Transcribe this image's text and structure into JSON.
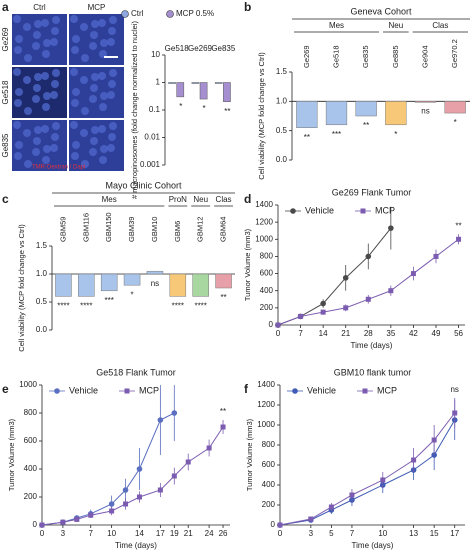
{
  "micrographs": {
    "columns": [
      "Ctrl",
      "MCP"
    ],
    "rows": [
      "Ge269",
      "Ge518",
      "Ge835"
    ],
    "stain": "TMR-Dextran / Dapi"
  },
  "chart_data": [
    {
      "type": "bar",
      "panel": "a",
      "ylabel": "# macropinosomes (fold change normalized to nuclei)",
      "categories": [
        "Ge518",
        "Ge269",
        "Ge835"
      ],
      "series": [
        {
          "name": "Ctrl",
          "color": "#8fa8e0",
          "values": [
            1,
            1,
            1
          ]
        },
        {
          "name": "MCP 0.5%",
          "color": "#a58fd0",
          "values": [
            0.3,
            0.25,
            0.2
          ]
        }
      ],
      "annotations": [
        "*",
        "*",
        "**"
      ],
      "log": true,
      "baseline": 1,
      "ylim": [
        0.001,
        10
      ],
      "yticks": [
        10,
        1,
        0.1,
        0.01,
        0.001
      ]
    },
    {
      "type": "groupbar",
      "panel": "b",
      "title": "Geneva Cohort",
      "ylabel": "Cell viability (MCP fold change vs Ctrl)",
      "baseline": 1,
      "groups": [
        {
          "name": "Mes",
          "color": "#a9c4ea",
          "categories": [
            "Ge269",
            "Ge518",
            "Ge835"
          ],
          "values": [
            0.55,
            0.6,
            0.75
          ],
          "annotations": [
            "**",
            "***",
            "**"
          ]
        },
        {
          "name": "Neu",
          "color": "#f6c877",
          "categories": [
            "Ge885"
          ],
          "values": [
            0.6
          ],
          "annotations": [
            "*"
          ]
        },
        {
          "name": "Clas",
          "color": "#e8a0a8",
          "categories": [
            "Ge904",
            "Ge970.2"
          ],
          "values": [
            1.0,
            0.8
          ],
          "annotations": [
            "ns",
            "*"
          ]
        }
      ],
      "ylim": [
        0,
        1.5
      ],
      "yticks": [
        1.5,
        {
          "value": 1,
          "label": "1.0"
        },
        0.5,
        {
          "value": 0,
          "label": "0.0"
        }
      ]
    },
    {
      "type": "groupbar",
      "panel": "c",
      "title": "Mayo Clinic Cohort",
      "ylabel": "Cell viability (MCP fold change vs Ctrl)",
      "baseline": 1,
      "groups": [
        {
          "name": "Mes",
          "color": "#a9c4ea",
          "categories": [
            "GBM59",
            "GBM116",
            "GBM150",
            "GBM39",
            "GBM10"
          ],
          "values": [
            0.6,
            0.6,
            0.7,
            0.8,
            1.05
          ],
          "annotations": [
            "****",
            "****",
            "***",
            "*",
            "ns"
          ]
        },
        {
          "name": "ProN",
          "color": "#f6c877",
          "categories": [
            "GBM6"
          ],
          "values": [
            0.6
          ],
          "annotations": [
            "****"
          ]
        },
        {
          "name": "Neu",
          "color": "#a8d8a0",
          "categories": [
            "GBM12"
          ],
          "values": [
            0.6
          ],
          "annotations": [
            "****"
          ]
        },
        {
          "name": "Clas",
          "color": "#e8a0a8",
          "categories": [
            "GBM64"
          ],
          "values": [
            0.75
          ],
          "annotations": [
            "**"
          ]
        }
      ],
      "ylim": [
        0,
        1.5
      ],
      "yticks": [
        1.5,
        {
          "value": 1,
          "label": "1.0"
        },
        0.5,
        {
          "value": 0,
          "label": "0.0"
        }
      ]
    },
    {
      "type": "line",
      "panel": "d",
      "title": "Ge269 Flank Tumor",
      "xlabel": "Time (days)",
      "ylabel": "Tumor Volume (mm3)",
      "annotation": "**",
      "series": [
        {
          "name": "Vehicle",
          "color": "#4a4a4a",
          "marker": "circle",
          "x": [
            0,
            7,
            14,
            21,
            28,
            35
          ],
          "values": [
            0,
            100,
            250,
            550,
            800,
            1130
          ],
          "errors": [
            0,
            20,
            50,
            150,
            150,
            250
          ]
        },
        {
          "name": "MCP",
          "color": "#7b5cb0",
          "marker": "square",
          "x": [
            0,
            7,
            14,
            21,
            28,
            35,
            42,
            49,
            56
          ],
          "values": [
            0,
            100,
            150,
            200,
            300,
            400,
            600,
            800,
            1000
          ],
          "errors": [
            0,
            20,
            30,
            40,
            50,
            60,
            80,
            80,
            60
          ]
        }
      ],
      "xlim": [
        0,
        58
      ],
      "xticks": [
        0,
        7,
        14,
        21,
        28,
        35,
        42,
        49,
        56
      ],
      "ylim": [
        0,
        1400
      ],
      "yticks": [
        0,
        200,
        400,
        600,
        800,
        1000,
        1200,
        1400
      ]
    },
    {
      "type": "line",
      "panel": "e",
      "title": "Ge518 Flank Tumor",
      "xlabel": "Time (days)",
      "ylabel": "Tumor Volume (mm3)",
      "annotation": "**",
      "series": [
        {
          "name": "Vehicle",
          "color": "#5a6fc0",
          "marker": "circle",
          "x": [
            0,
            3,
            5,
            7,
            10,
            12,
            14,
            17,
            19
          ],
          "values": [
            0,
            20,
            50,
            80,
            150,
            250,
            400,
            750,
            800
          ],
          "errors": [
            0,
            10,
            20,
            30,
            60,
            80,
            150,
            250,
            200
          ]
        },
        {
          "name": "MCP",
          "color": "#7b5cb0",
          "marker": "square",
          "x": [
            0,
            3,
            5,
            7,
            10,
            12,
            14,
            17,
            19,
            21,
            24,
            26
          ],
          "values": [
            0,
            20,
            40,
            70,
            100,
            150,
            200,
            250,
            350,
            450,
            550,
            700
          ],
          "errors": [
            0,
            10,
            15,
            20,
            30,
            40,
            40,
            50,
            60,
            60,
            60,
            50
          ]
        }
      ],
      "xlim": [
        0,
        27
      ],
      "xticks": [
        0,
        3,
        7,
        10,
        14,
        17,
        19,
        21,
        24,
        26
      ],
      "ylim": [
        0,
        1000
      ],
      "yticks": [
        0,
        200,
        400,
        600,
        800,
        1000
      ]
    },
    {
      "type": "line",
      "panel": "f",
      "title": "GBM10 flank tumor",
      "xlabel": "Time (days)",
      "ylabel": "Tumor Volume (mm3)",
      "annotation": "ns",
      "series": [
        {
          "name": "Vehicle",
          "color": "#3f5bb5",
          "marker": "circle",
          "x": [
            0,
            3,
            5,
            7,
            10,
            13,
            15,
            17
          ],
          "values": [
            0,
            50,
            150,
            250,
            400,
            550,
            700,
            1050
          ],
          "errors": [
            0,
            20,
            40,
            60,
            80,
            100,
            150,
            200
          ]
        },
        {
          "name": "MCP",
          "color": "#7b5cb0",
          "marker": "square",
          "x": [
            0,
            3,
            5,
            7,
            10,
            13,
            15,
            17
          ],
          "values": [
            0,
            60,
            180,
            300,
            450,
            650,
            850,
            1120
          ],
          "errors": [
            0,
            20,
            40,
            60,
            80,
            120,
            150,
            150
          ]
        }
      ],
      "xlim": [
        0,
        18
      ],
      "xticks": [
        0,
        3,
        5,
        7,
        10,
        13,
        15,
        17
      ],
      "ylim": [
        0,
        1400
      ],
      "yticks": [
        0,
        200,
        400,
        600,
        800,
        1000,
        1200,
        1400
      ]
    }
  ]
}
